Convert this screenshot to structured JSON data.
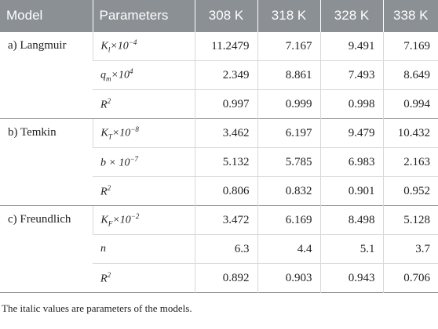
{
  "table": {
    "header": [
      "Model",
      "Parameters",
      "308 K",
      "318 K",
      "328 K",
      "338 K"
    ],
    "groups": [
      {
        "model": "a) Langmuir",
        "rows": [
          {
            "parameter": {
              "symbol": "K",
              "sub": "l",
              "factor": "×10",
              "exp": "−4"
            },
            "values": [
              11.2479,
              7.167,
              9.491,
              7.169
            ]
          },
          {
            "parameter": {
              "symbol": "q",
              "sub": "m",
              "factor": "×10",
              "exp": "4"
            },
            "values": [
              2.349,
              8.861,
              7.493,
              8.649
            ]
          },
          {
            "parameter": {
              "symbol": "R",
              "exp": "2"
            },
            "values": [
              0.997,
              0.999,
              0.998,
              0.994
            ]
          }
        ]
      },
      {
        "model": "b) Temkin",
        "rows": [
          {
            "parameter": {
              "symbol": "K",
              "sub": "T",
              "factor": "×10",
              "exp": "−8"
            },
            "values": [
              3.462,
              6.197,
              9.479,
              10.432
            ]
          },
          {
            "parameter": {
              "symbol": "b",
              "factor": " × 10",
              "exp": "−7"
            },
            "values": [
              5.132,
              5.785,
              6.983,
              2.163
            ]
          },
          {
            "parameter": {
              "symbol": "R",
              "exp": "2"
            },
            "values": [
              0.806,
              0.832,
              0.901,
              0.952
            ]
          }
        ]
      },
      {
        "model": "c) Freundlich",
        "rows": [
          {
            "parameter": {
              "symbol": "K",
              "sub": "F",
              "factor": "×10",
              "exp": "−2"
            },
            "values": [
              3.472,
              6.169,
              8.498,
              5.128
            ]
          },
          {
            "parameter": {
              "symbol": "n"
            },
            "values": [
              6.3,
              4.4,
              5.1,
              3.7
            ]
          },
          {
            "parameter": {
              "symbol": "R",
              "exp": "2"
            },
            "values": [
              0.892,
              0.903,
              0.943,
              0.706
            ]
          }
        ]
      }
    ]
  },
  "footnote": "The italic values are parameters of the models."
}
